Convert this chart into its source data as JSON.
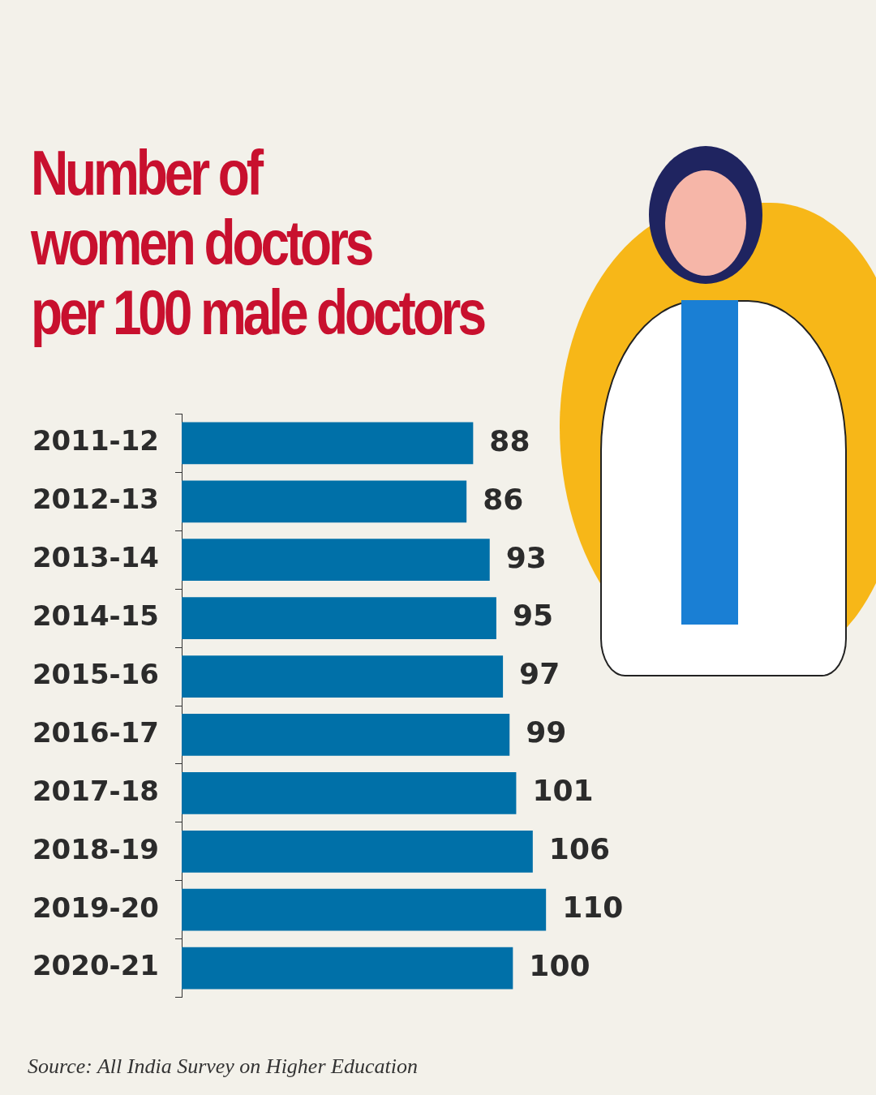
{
  "chart_data": {
    "type": "bar",
    "orientation": "horizontal",
    "title": "Number of\nwomen doctors\nper 100 male doctors",
    "categories": [
      "2011-12",
      "2012-13",
      "2013-14",
      "2014-15",
      "2015-16",
      "2016-17",
      "2017-18",
      "2018-19",
      "2019-20",
      "2020-21"
    ],
    "values": [
      88,
      86,
      93,
      95,
      97,
      99,
      101,
      106,
      110,
      100
    ],
    "color": "#0070a8",
    "tick_labels": "y",
    "data_labels": true,
    "grid": false,
    "legend": false,
    "annotations": [
      "Source: All India Survey on Higher Education"
    ]
  }
}
